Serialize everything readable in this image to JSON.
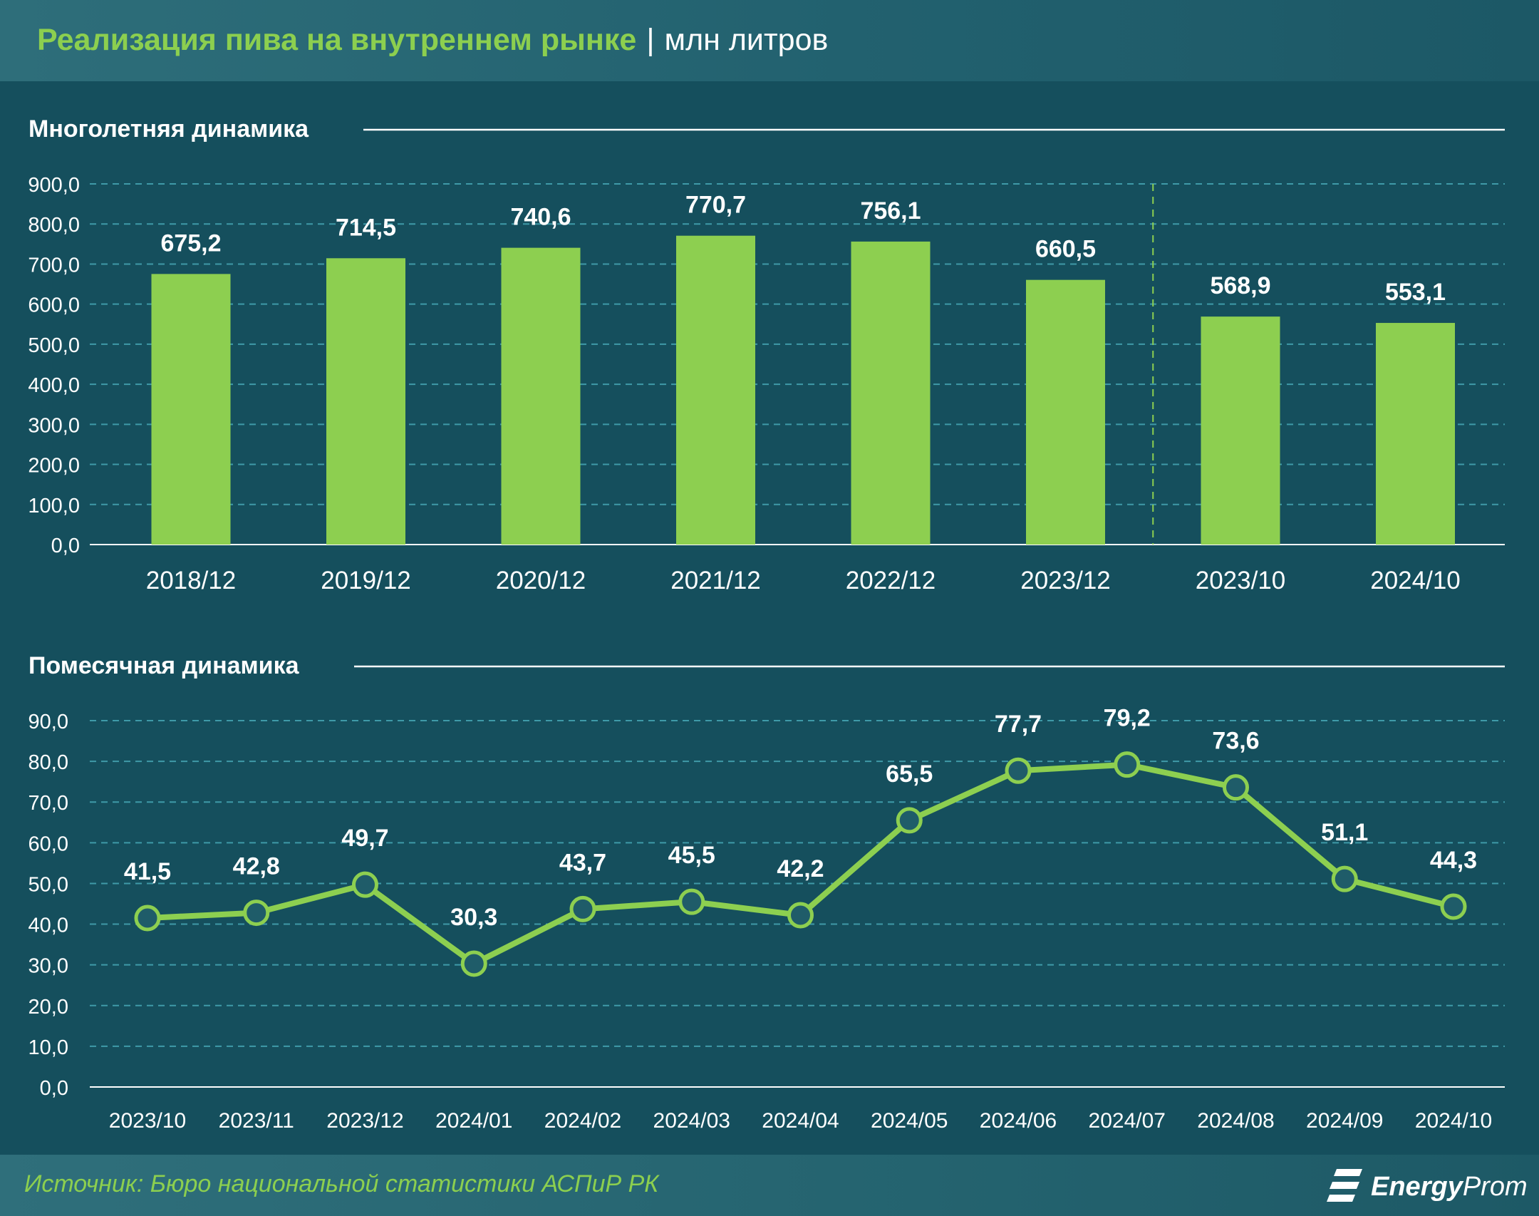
{
  "header": {
    "title": "Реализация пива на внутреннем рынке",
    "separator": "|",
    "unit": "млн литров"
  },
  "footer": {
    "source": "Источник: Бюро национальной статистики АСПиР РК",
    "logo_strong": "Energy",
    "logo_rest": "Prom",
    "logo_icon": "energyprom-logo-icon"
  },
  "colors": {
    "background": "#154f5d",
    "bar": "#8dcf50",
    "line": "#8dcf50",
    "grid": "#3f9aa8",
    "text": "#ffffff",
    "accent": "#8ccf4f"
  },
  "chart_data": [
    {
      "type": "bar",
      "title": "Многолетняя динамика",
      "categories": [
        "2018/12",
        "2019/12",
        "2020/12",
        "2021/12",
        "2022/12",
        "2023/12",
        "2023/10",
        "2024/10"
      ],
      "values": [
        675.2,
        714.5,
        740.6,
        770.7,
        756.1,
        660.5,
        568.9,
        553.1
      ],
      "value_labels": [
        "675,2",
        "714,5",
        "740,6",
        "770,7",
        "756,1",
        "660,5",
        "568,9",
        "553,1"
      ],
      "yticks": [
        "0,0",
        "100,0",
        "200,0",
        "300,0",
        "400,0",
        "500,0",
        "600,0",
        "700,0",
        "800,0",
        "900,0"
      ],
      "ylim": [
        0,
        900
      ],
      "grid": true,
      "divider_after_category": "2023/12"
    },
    {
      "type": "line",
      "title": "Помесячная динамика",
      "categories": [
        "2023/10",
        "2023/11",
        "2023/12",
        "2024/01",
        "2024/02",
        "2024/03",
        "2024/04",
        "2024/05",
        "2024/06",
        "2024/07",
        "2024/08",
        "2024/09",
        "2024/10"
      ],
      "values": [
        41.5,
        42.8,
        49.7,
        30.3,
        43.7,
        45.5,
        42.2,
        65.5,
        77.7,
        79.2,
        73.6,
        51.1,
        44.3
      ],
      "value_labels": [
        "41,5",
        "42,8",
        "49,7",
        "30,3",
        "43,7",
        "45,5",
        "42,2",
        "65,5",
        "77,7",
        "79,2",
        "73,6",
        "51,1",
        "44,3"
      ],
      "yticks": [
        "0,0",
        "10,0",
        "20,0",
        "30,0",
        "40,0",
        "50,0",
        "60,0",
        "70,0",
        "80,0",
        "90,0"
      ],
      "ylim": [
        0,
        90
      ],
      "grid": true
    }
  ]
}
